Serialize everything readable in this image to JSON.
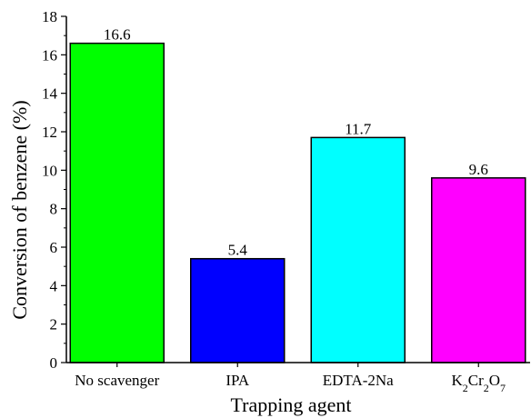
{
  "chart_data": {
    "type": "bar",
    "categories": [
      "No scavenger",
      "IPA",
      "EDTA-2Na",
      "K2Cr2O7"
    ],
    "category_display": [
      [
        {
          "t": "No scavenger"
        }
      ],
      [
        {
          "t": "IPA"
        }
      ],
      [
        {
          "t": "EDTA-2Na"
        }
      ],
      [
        {
          "t": "K"
        },
        {
          "t": "2",
          "sub": true
        },
        {
          "t": "Cr"
        },
        {
          "t": "2",
          "sub": true
        },
        {
          "t": "O"
        },
        {
          "t": "7",
          "sub": true
        }
      ]
    ],
    "values": [
      16.6,
      5.4,
      11.7,
      9.6
    ],
    "value_labels": [
      "16.6",
      "5.4",
      "11.7",
      "9.6"
    ],
    "colors": [
      "#00ff00",
      "#0000ff",
      "#00ffff",
      "#ff00ff"
    ],
    "xlabel": "Trapping agent",
    "ylabel": "Conversion of benzene (%)",
    "ylim": [
      0,
      18
    ],
    "yticks": [
      0,
      2,
      4,
      6,
      8,
      10,
      12,
      14,
      16,
      18
    ],
    "grid": false,
    "legend": "none"
  }
}
